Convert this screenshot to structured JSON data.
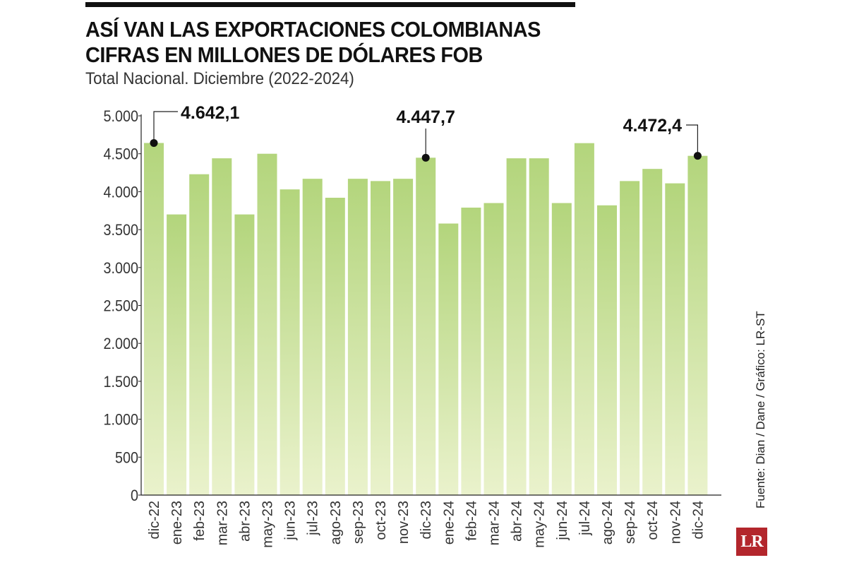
{
  "header": {
    "title_line1": "ASÍ VAN LAS EXPORTACIONES COLOMBIANAS",
    "title_line2": "CIFRAS EN MILLONES DE DÓLARES FOB",
    "subtitle": "Total Nacional. Diciembre (2022-2024)"
  },
  "source": "Fuente: Dian / Dane / Gráfico: LR-ST",
  "logo_text": "LR",
  "colors": {
    "bar_top": "#b3d57c",
    "bar_bottom": "#eaf2cc",
    "text": "#111111"
  },
  "chart_data": {
    "type": "bar",
    "categories": [
      "dic-22",
      "ene-23",
      "feb-23",
      "mar-23",
      "abr-23",
      "may-23",
      "jun-23",
      "jul-23",
      "ago-23",
      "sep-23",
      "oct-23",
      "nov-23",
      "dic-23",
      "ene-24",
      "feb-24",
      "mar-24",
      "abr-24",
      "may-24",
      "jun-24",
      "jul-24",
      "ago-24",
      "sep-24",
      "oct-24",
      "nov-24",
      "dic-24"
    ],
    "values": [
      4642.1,
      3700,
      4230,
      4440,
      3700,
      4500,
      4030,
      4170,
      3920,
      4170,
      4140,
      4170,
      4447.7,
      3580,
      3790,
      3850,
      4440,
      4440,
      3850,
      4640,
      3820,
      4140,
      4300,
      4110,
      4472.4
    ],
    "ylim": [
      0,
      5000
    ],
    "yticks": [
      0,
      500,
      1000,
      1500,
      2000,
      2500,
      3000,
      3500,
      4000,
      4500,
      5000
    ],
    "ytick_labels": [
      "0",
      "500",
      "1.000",
      "1.500",
      "2.000",
      "2.500",
      "3.000",
      "3.500",
      "4.000",
      "4.500",
      "5.000"
    ],
    "grid": false,
    "annotations": [
      {
        "index": 0,
        "label": "4.642,1"
      },
      {
        "index": 12,
        "label": "4.447,7"
      },
      {
        "index": 24,
        "label": "4.472,4"
      }
    ]
  }
}
